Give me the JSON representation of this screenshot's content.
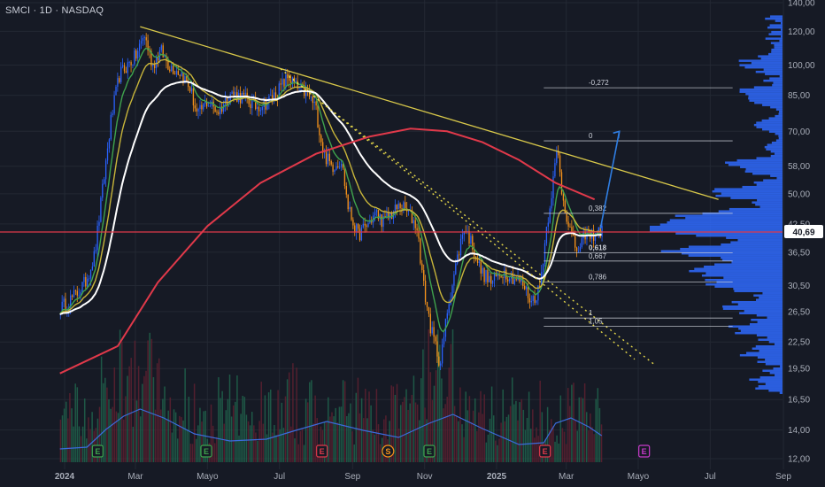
{
  "header": {
    "symbol_line": "SMCI · 1D · NASDAQ"
  },
  "colors": {
    "background": "#161a25",
    "grid": "#232833",
    "candle_up": "#2962ff",
    "candle_down": "#f7931a",
    "ema_white": "#ffffff",
    "ema_green": "#3fa34d",
    "ema_yellow": "#c8b53a",
    "sma_red": "#e0394a",
    "trendline": "#d8c84a",
    "channel": "#e6d84a",
    "projection": "#2f7de1",
    "price_line": "#e0394a",
    "volume_profile": "#2f6bff",
    "volume_ma": "#3b6bdc",
    "axis_text": "#a8adb8",
    "price_badge_bg": "#ffffff",
    "price_badge_text": "#161a25"
  },
  "chart_data": {
    "type": "candlestick",
    "title": "SMCI · 1D · NASDAQ",
    "x_ticks": [
      "2024",
      "Mar",
      "Mayo",
      "Jul",
      "Sep",
      "Nov",
      "2025",
      "Mar",
      "Mayo",
      "Jul",
      "Sep"
    ],
    "y_ticks": [
      "140,00",
      "120,00",
      "100,00",
      "85,00",
      "70,00",
      "58,00",
      "50,00",
      "42,50",
      "36,50",
      "30,50",
      "26,50",
      "22,50",
      "19,50",
      "16,50",
      "14,00",
      "12,00"
    ],
    "y_scale": "log",
    "ylim": [
      12,
      140
    ],
    "last_price": "40,69",
    "price_path": [
      [
        "2023-12-28",
        27
      ],
      [
        "2024-01-10",
        29
      ],
      [
        "2024-01-18",
        31
      ],
      [
        "2024-01-26",
        36
      ],
      [
        "2024-02-02",
        52
      ],
      [
        "2024-02-09",
        75
      ],
      [
        "2024-02-16",
        95
      ],
      [
        "2024-02-23",
        100
      ],
      [
        "2024-03-01",
        105
      ],
      [
        "2024-03-08",
        118
      ],
      [
        "2024-03-15",
        100
      ],
      [
        "2024-03-22",
        108
      ],
      [
        "2024-03-29",
        100
      ],
      [
        "2024-04-08",
        96
      ],
      [
        "2024-04-16",
        88
      ],
      [
        "2024-04-22",
        76
      ],
      [
        "2024-04-30",
        82
      ],
      [
        "2024-05-10",
        78
      ],
      [
        "2024-05-20",
        86
      ],
      [
        "2024-05-31",
        84
      ],
      [
        "2024-06-10",
        80
      ],
      [
        "2024-06-20",
        82
      ],
      [
        "2024-06-28",
        86
      ],
      [
        "2024-07-08",
        94
      ],
      [
        "2024-07-16",
        88
      ],
      [
        "2024-07-24",
        86
      ],
      [
        "2024-07-31",
        80
      ],
      [
        "2024-08-07",
        62
      ],
      [
        "2024-08-14",
        58
      ],
      [
        "2024-08-22",
        60
      ],
      [
        "2024-08-28",
        46
      ],
      [
        "2024-09-05",
        40
      ],
      [
        "2024-09-12",
        42
      ],
      [
        "2024-09-20",
        45
      ],
      [
        "2024-09-27",
        43
      ],
      [
        "2024-10-04",
        45
      ],
      [
        "2024-10-11",
        47
      ],
      [
        "2024-10-18",
        45
      ],
      [
        "2024-10-25",
        42
      ],
      [
        "2024-10-31",
        30
      ],
      [
        "2024-11-06",
        24
      ],
      [
        "2024-11-14",
        20
      ],
      [
        "2024-11-20",
        27
      ],
      [
        "2024-11-27",
        34
      ],
      [
        "2024-12-04",
        42
      ],
      [
        "2024-12-11",
        38
      ],
      [
        "2024-12-18",
        33
      ],
      [
        "2024-12-27",
        31
      ],
      [
        "2025-01-06",
        33
      ],
      [
        "2025-01-14",
        32
      ],
      [
        "2025-01-22",
        31
      ],
      [
        "2025-01-30",
        28
      ],
      [
        "2025-02-06",
        30
      ],
      [
        "2025-02-12",
        42
      ],
      [
        "2025-02-18",
        55
      ],
      [
        "2025-02-21",
        64
      ],
      [
        "2025-02-25",
        50
      ],
      [
        "2025-03-03",
        42
      ],
      [
        "2025-03-07",
        38
      ],
      [
        "2025-03-12",
        36.5
      ],
      [
        "2025-03-17",
        41
      ],
      [
        "2025-03-21",
        39.5
      ],
      [
        "2025-03-26",
        41
      ],
      [
        "2025-03-31",
        40.69
      ]
    ],
    "indicators": [
      {
        "type": "ema",
        "period": 10,
        "color": "#3fa34d"
      },
      {
        "type": "ema",
        "period": 20,
        "color": "#c8b53a"
      },
      {
        "type": "ema",
        "period": 50,
        "color": "#ffffff"
      },
      {
        "type": "sma",
        "period": 200,
        "color": "#e0394a"
      }
    ],
    "fibonacci": {
      "levels": [
        {
          "label": "-0,272",
          "value": 88.5
        },
        {
          "label": "0",
          "value": 66.5
        },
        {
          "label": "0,382",
          "value": 45
        },
        {
          "label": "0,618",
          "value": 36.4
        },
        {
          "label": "0,667",
          "value": 34.8
        },
        {
          "label": "0,786",
          "value": 31.1
        },
        {
          "label": "1",
          "value": 25.6
        },
        {
          "label": "1,05",
          "value": 24.5
        }
      ]
    },
    "earnings_markers": [
      {
        "date": "2024-01-29",
        "label": "E",
        "color": "#3fa34d"
      },
      {
        "date": "2024-04-30",
        "label": "E",
        "color": "#3fa34d"
      },
      {
        "date": "2024-08-06",
        "label": "E",
        "color": "#e0394a"
      },
      {
        "date": "2024-11-05",
        "label": "E",
        "color": "#3fa34d"
      },
      {
        "date": "2025-02-11",
        "label": "E",
        "color": "#e0394a"
      },
      {
        "date": "2025-05-06",
        "label": "E",
        "color": "#c83acb"
      }
    ],
    "dividend_marker": {
      "date": "2024-10-01",
      "label": "S",
      "color": "#f7931a"
    }
  }
}
